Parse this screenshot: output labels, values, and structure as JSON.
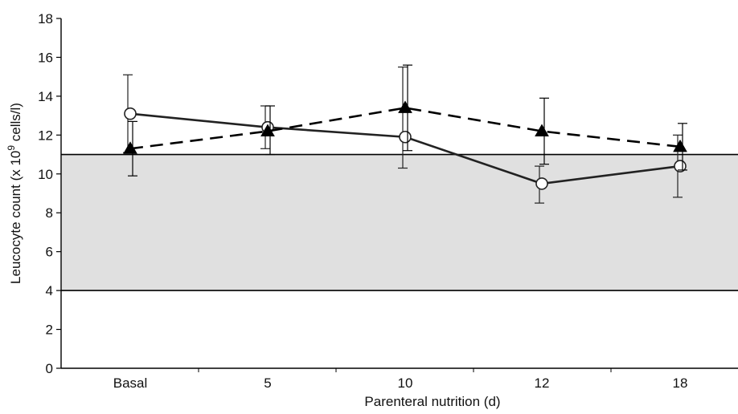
{
  "chart_data": {
    "type": "line",
    "title": "",
    "xlabel": "Parenteral nutrition (d)",
    "ylabel_main": "Leucocyte count (x 10",
    "ylabel_sup": "9",
    "ylabel_rest": " cells/l)",
    "categories": [
      "Basal",
      "5",
      "10",
      "12",
      "18"
    ],
    "ylim": [
      0,
      18
    ],
    "yticks": [
      0,
      2,
      4,
      6,
      8,
      10,
      12,
      14,
      16,
      18
    ],
    "reference_band": {
      "from": 4,
      "to": 11,
      "color": "#e0e0e0"
    },
    "series": [
      {
        "marker": "open-circle",
        "line_style": "solid",
        "color": "#222222",
        "values": [
          13.1,
          12.4,
          11.9,
          9.5,
          10.4
        ],
        "error_upper": [
          15.1,
          13.5,
          15.5,
          10.4,
          12.0
        ],
        "error_lower": [
          11.1,
          11.3,
          10.3,
          8.5,
          8.8
        ]
      },
      {
        "marker": "filled-triangle",
        "line_style": "dashed",
        "color": "#000000",
        "values": [
          11.3,
          12.2,
          13.4,
          12.2,
          11.4
        ],
        "error_upper": [
          12.7,
          13.5,
          15.6,
          13.9,
          12.6
        ],
        "error_lower": [
          9.9,
          11.0,
          11.2,
          10.5,
          10.2
        ]
      }
    ]
  }
}
